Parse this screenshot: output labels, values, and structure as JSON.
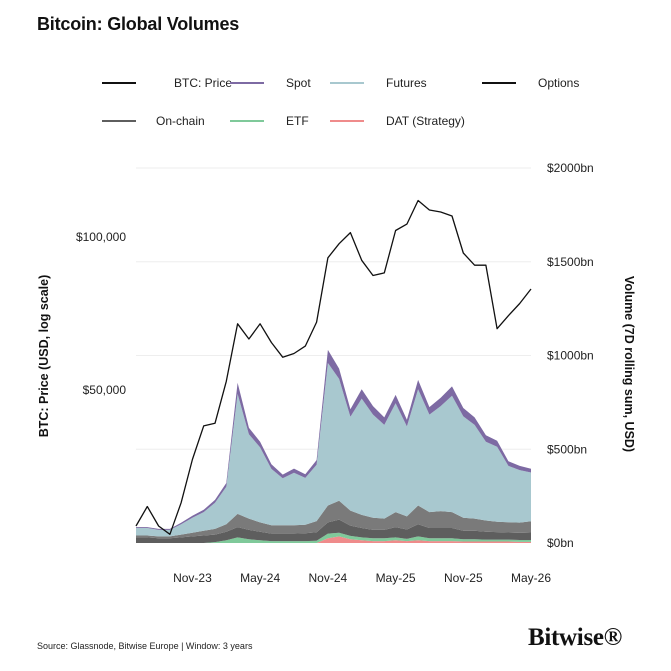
{
  "title": "Bitcoin: Global Volumes",
  "source": "Source: Glassnode, Bitwise Europe | Window: 3 years",
  "brand": "Bitwise®",
  "colors": {
    "price": "#111111",
    "spot": "#7d6aa3",
    "futures": "#a8c8cf",
    "options": "#111111",
    "onchain": "#5e5e5e",
    "etf": "#7fc99a",
    "dat": "#ef8b8b"
  },
  "chart_data": {
    "type": "area",
    "title": "Bitcoin: Global Volumes",
    "x": [
      "2023-06",
      "2023-07",
      "2023-08",
      "2023-09",
      "2023-10",
      "2023-11",
      "2023-12",
      "2024-01",
      "2024-02",
      "2024-03",
      "2024-04",
      "2024-05",
      "2024-06",
      "2024-07",
      "2024-08",
      "2024-09",
      "2024-10",
      "2024-11",
      "2024-12",
      "2025-01",
      "2025-02",
      "2025-03",
      "2025-04",
      "2025-05",
      "2025-06",
      "2025-07",
      "2025-08",
      "2025-09",
      "2025-10",
      "2025-11",
      "2025-12",
      "2026-01",
      "2026-02",
      "2026-03",
      "2026-04",
      "2026-05"
    ],
    "x_tick_labels": [
      "Nov-23",
      "May-24",
      "Nov-24",
      "May-25",
      "Nov-25",
      "May-26"
    ],
    "left_axis": {
      "label": "BTC: Price (USD, log scale)",
      "scale": "log",
      "ticks": [
        50000,
        100000
      ],
      "tick_labels": [
        "$50,000",
        "$100,000"
      ]
    },
    "right_axis": {
      "label": "Volume (7D rolling sum, USD)",
      "ticks": [
        0,
        500,
        1000,
        1500,
        2000
      ],
      "tick_labels": [
        "$0bn",
        "$500bn",
        "$1000bn",
        "$1500bn",
        "$2000bn"
      ],
      "range": [
        0,
        2000
      ],
      "unit": "bn USD"
    },
    "legend": [
      {
        "key": "price",
        "label": "BTC: Price"
      },
      {
        "key": "spot",
        "label": "Spot"
      },
      {
        "key": "futures",
        "label": "Futures"
      },
      {
        "key": "options",
        "label": "Options"
      },
      {
        "key": "onchain",
        "label": "On-chain"
      },
      {
        "key": "etf",
        "label": "ETF"
      },
      {
        "key": "dat",
        "label": "DAT (Strategy)"
      }
    ],
    "price_series": {
      "name": "BTC: Price",
      "values": [
        27000,
        29500,
        27000,
        26000,
        30000,
        36500,
        42500,
        43000,
        52000,
        67500,
        63000,
        67500,
        62000,
        58000,
        59000,
        61000,
        68000,
        91000,
        97000,
        102000,
        90000,
        84000,
        85000,
        103000,
        106000,
        118000,
        113000,
        112000,
        110000,
        93000,
        88000,
        88000,
        66000,
        70000,
        74000,
        79000
      ]
    },
    "volume_series_stacked": [
      {
        "name": "DAT (Strategy)",
        "values": [
          0,
          0,
          0,
          0,
          0,
          0,
          0,
          0,
          0,
          0,
          0,
          0,
          0,
          0,
          0,
          0,
          0,
          25,
          35,
          20,
          15,
          10,
          10,
          15,
          10,
          15,
          10,
          10,
          10,
          8,
          8,
          8,
          8,
          8,
          6,
          6
        ]
      },
      {
        "name": "ETF",
        "values": [
          0,
          0,
          0,
          0,
          0,
          0,
          0,
          5,
          15,
          30,
          20,
          15,
          10,
          10,
          10,
          10,
          12,
          25,
          20,
          18,
          15,
          15,
          15,
          15,
          12,
          20,
          15,
          15,
          15,
          12,
          12,
          10,
          10,
          10,
          10,
          10
        ]
      },
      {
        "name": "On-chain",
        "values": [
          30,
          30,
          25,
          25,
          30,
          35,
          40,
          40,
          45,
          55,
          50,
          45,
          40,
          40,
          40,
          42,
          45,
          60,
          70,
          55,
          50,
          45,
          45,
          55,
          50,
          65,
          55,
          55,
          55,
          45,
          45,
          42,
          40,
          38,
          38,
          40
        ]
      },
      {
        "name": "Options",
        "values": [
          10,
          10,
          10,
          10,
          15,
          20,
          25,
          30,
          40,
          70,
          60,
          50,
          45,
          45,
          45,
          45,
          60,
          90,
          100,
          80,
          70,
          65,
          60,
          80,
          70,
          100,
          85,
          90,
          85,
          70,
          65,
          60,
          55,
          55,
          55,
          60
        ]
      },
      {
        "name": "Futures",
        "values": [
          40,
          40,
          35,
          35,
          55,
          80,
          100,
          140,
          200,
          640,
          450,
          400,
          300,
          250,
          280,
          250,
          300,
          760,
          650,
          500,
          620,
          550,
          500,
          580,
          480,
          620,
          520,
          560,
          620,
          540,
          500,
          420,
          400,
          300,
          280,
          260
        ]
      },
      {
        "name": "Spot",
        "values": [
          5,
          5,
          5,
          5,
          8,
          10,
          12,
          15,
          20,
          60,
          35,
          30,
          25,
          20,
          22,
          20,
          25,
          70,
          55,
          40,
          50,
          45,
          40,
          45,
          35,
          50,
          40,
          45,
          50,
          45,
          40,
          35,
          32,
          25,
          22,
          20
        ]
      }
    ]
  }
}
